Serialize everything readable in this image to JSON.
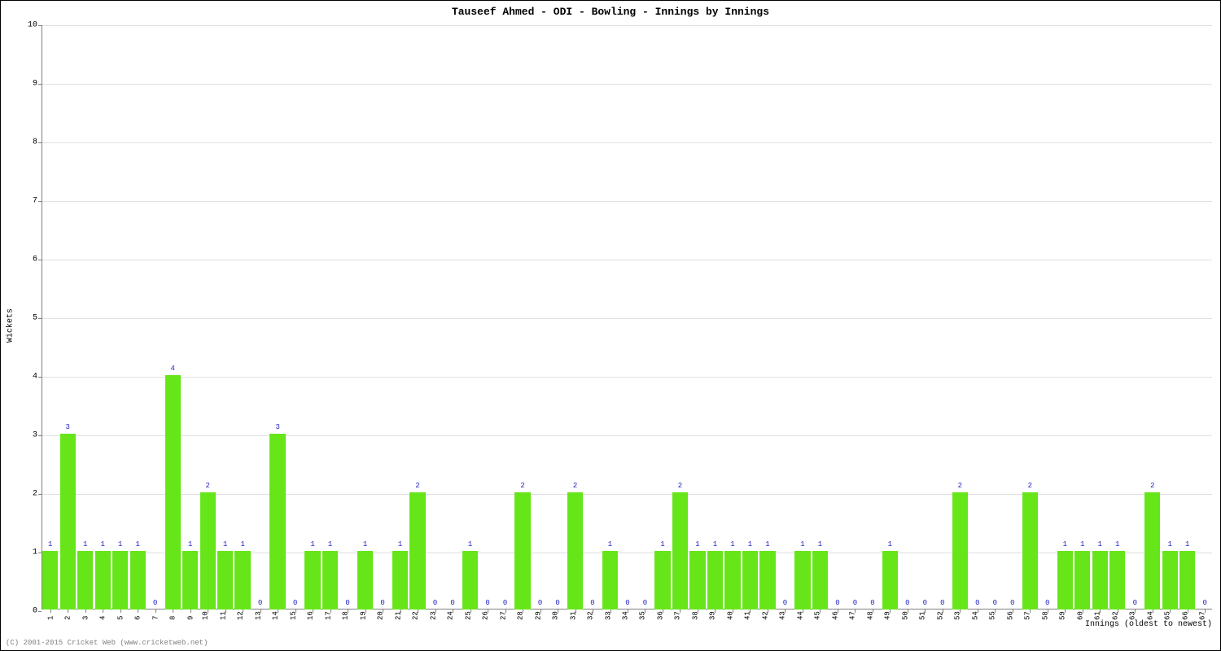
{
  "chart": {
    "type": "bar",
    "title": "Tauseef Ahmed - ODI - Bowling - Innings by Innings",
    "xlabel": "Innings (oldest to newest)",
    "ylabel": "Wickets",
    "ylim": [
      0,
      10
    ],
    "ytick_step": 1,
    "yticks": [
      0,
      1,
      2,
      3,
      4,
      5,
      6,
      7,
      8,
      9,
      10
    ],
    "categories": [
      1,
      2,
      3,
      4,
      5,
      6,
      7,
      8,
      9,
      10,
      11,
      12,
      13,
      14,
      15,
      16,
      17,
      18,
      19,
      20,
      21,
      22,
      23,
      24,
      25,
      26,
      27,
      28,
      29,
      30,
      31,
      32,
      33,
      34,
      35,
      36,
      37,
      38,
      39,
      40,
      41,
      42,
      43,
      44,
      45,
      46,
      47,
      48,
      49,
      50,
      51,
      52,
      53,
      54,
      55,
      56,
      57,
      58,
      59,
      60,
      61,
      62,
      63,
      64,
      65,
      66,
      67
    ],
    "values": [
      1,
      3,
      1,
      1,
      1,
      1,
      0,
      4,
      1,
      2,
      1,
      1,
      0,
      3,
      0,
      1,
      1,
      0,
      1,
      0,
      1,
      2,
      0,
      0,
      1,
      0,
      0,
      2,
      0,
      0,
      2,
      0,
      1,
      0,
      0,
      1,
      2,
      1,
      1,
      1,
      1,
      1,
      0,
      1,
      1,
      0,
      0,
      0,
      1,
      0,
      0,
      0,
      2,
      0,
      0,
      0,
      2,
      0,
      1,
      1,
      1,
      1,
      0,
      2,
      1,
      1,
      0
    ],
    "bar_color": "#66e619",
    "bar_width_ratio": 0.9,
    "background_color": "#ffffff",
    "grid_color": "#e0e0e0",
    "axis_color": "#808080",
    "title_fontsize": 13,
    "label_fontsize": 10,
    "tick_fontsize": 10,
    "bar_label_fontsize": 9,
    "bar_label_color": "#2020c0",
    "x_tick_rotation": -90,
    "copyright": "(C) 2001-2015 Cricket Web (www.cricketweb.net)",
    "copyright_color": "#808080"
  }
}
